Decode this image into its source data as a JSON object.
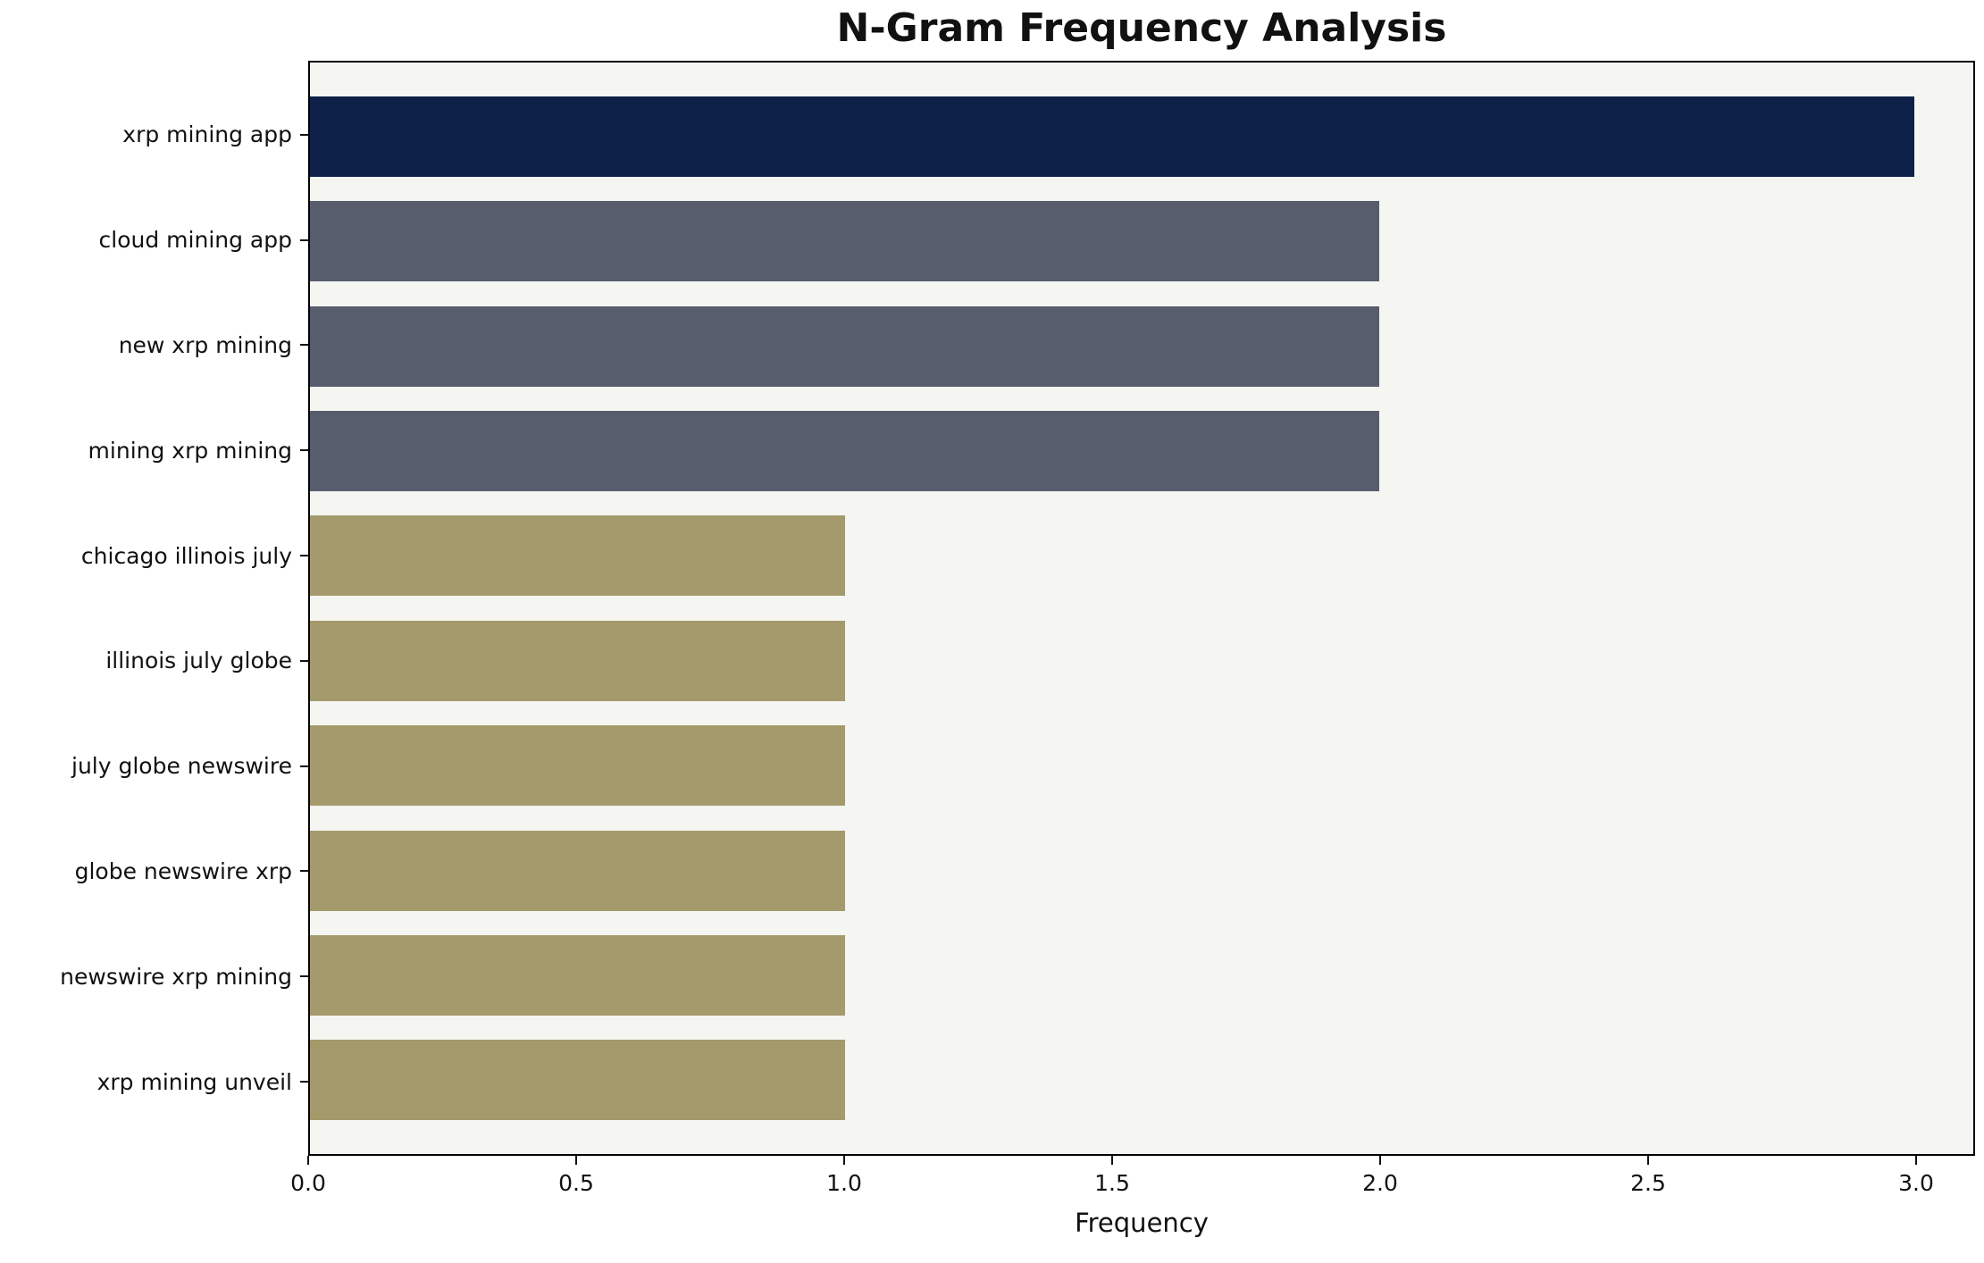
{
  "chart_data": {
    "type": "bar",
    "orientation": "horizontal",
    "title": "N-Gram Frequency Analysis",
    "xlabel": "Frequency",
    "ylabel": "",
    "categories": [
      "xrp mining app",
      "cloud mining app",
      "new xrp mining",
      "mining xrp mining",
      "chicago illinois july",
      "illinois july globe",
      "july globe newswire",
      "globe newswire xrp",
      "newswire xrp mining",
      "xrp mining unveil"
    ],
    "values": [
      3,
      2,
      2,
      2,
      1,
      1,
      1,
      1,
      1,
      1
    ],
    "bar_colors": [
      "#0d2149",
      "#575d6d",
      "#575d6d",
      "#575d6d",
      "#a49a6b",
      "#a49a6b",
      "#a49a6b",
      "#a49a6b",
      "#a49a6b",
      "#a49a6b"
    ],
    "xlim": [
      0,
      3.11
    ],
    "x_ticks": [
      "0.0",
      "0.5",
      "1.0",
      "1.5",
      "2.0",
      "2.5",
      "3.0"
    ],
    "x_tick_values": [
      0,
      0.5,
      1,
      1.5,
      2,
      2.5,
      3
    ],
    "grid": false,
    "legend_position": "none",
    "plot_bg": "#f5f5f2",
    "figure_bg": "#ffffff"
  }
}
